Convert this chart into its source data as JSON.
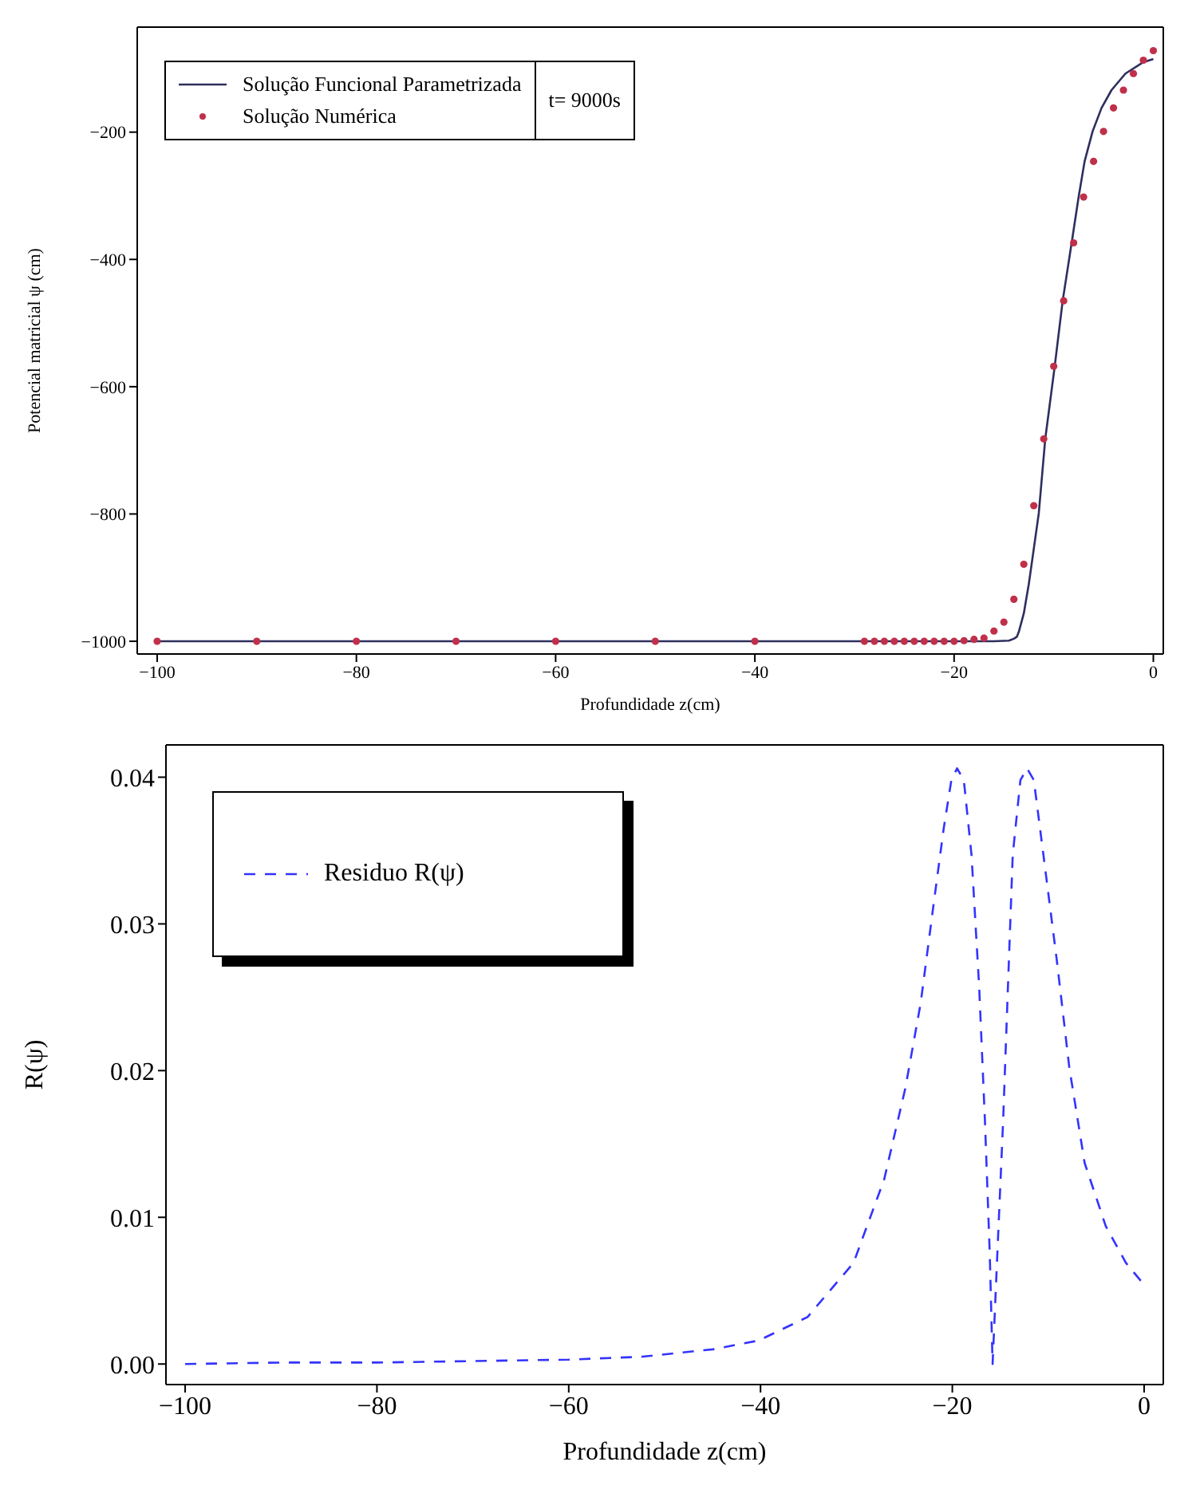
{
  "chart_data": [
    {
      "type": "line",
      "xlabel": "Profundidade z(cm)",
      "ylabel": "Potencial matricial ψ (cm)",
      "xlim": [
        -102,
        1
      ],
      "ylim": [
        -1020,
        -35
      ],
      "xticks": [
        -100,
        -80,
        -60,
        -40,
        -20,
        0
      ],
      "yticks": [
        -1000,
        -800,
        -600,
        -400,
        -200
      ],
      "grid": false,
      "legend": "top left",
      "annotations": [
        "t= 9000s"
      ],
      "series": [
        {
          "name": "Solução Funcional Parametrizada",
          "color": "#2e2e5e",
          "marker": "none",
          "line_style": "solid",
          "x": [
            -100,
            -60,
            -30,
            -20,
            -16,
            -14.5,
            -14,
            -13.7,
            -13.5,
            -13,
            -12.5,
            -12.2,
            -11.5,
            -10.85,
            -9.9,
            -9.1,
            -8.2,
            -7.5,
            -6.9,
            -6.1,
            -5.2,
            -4.2,
            -2.8,
            -1,
            0
          ],
          "values": [
            -1000,
            -1000,
            -1000,
            -1000,
            -1000,
            -999,
            -996,
            -993,
            -985,
            -956,
            -910,
            -877,
            -799,
            -682,
            -568,
            -465,
            -374,
            -302,
            -246,
            -199,
            -162,
            -134,
            -108,
            -90,
            -85
          ]
        },
        {
          "name": "Solução Numérica",
          "type": "scatter",
          "color": "#c0304a",
          "marker": "circle",
          "x": [
            -100,
            -90,
            -80,
            -70,
            -60,
            -50,
            -40,
            -29,
            -28,
            -27,
            -26,
            -25,
            -24,
            -23,
            -22,
            -21,
            -20,
            -19,
            -18,
            -17,
            -16,
            -15,
            -14,
            -13,
            -12,
            -11,
            -10,
            -9,
            -8,
            -7,
            -6,
            -5,
            -4,
            -3,
            -2,
            -1,
            0
          ],
          "values": [
            -1000,
            -1000,
            -1000,
            -1000,
            -1000,
            -1000,
            -1000,
            -1000,
            -1000,
            -1000,
            -1000,
            -1000,
            -1000,
            -1000,
            -1000,
            -1000,
            -1000,
            -999,
            -997,
            -995,
            -984,
            -970,
            -934,
            -879,
            -787,
            -682,
            -568,
            -465,
            -374,
            -302,
            -246,
            -199,
            -162,
            -134,
            -108,
            -87,
            -72
          ]
        }
      ]
    },
    {
      "type": "line",
      "xlabel": "Profundidade z(cm)",
      "ylabel": "R(ψ)",
      "xlim": [
        -102,
        2
      ],
      "ylim": [
        -0.0014,
        0.0422
      ],
      "xticks": [
        -100,
        -80,
        -60,
        -40,
        -20,
        0
      ],
      "yticks": [
        {
          "value": 0,
          "label": "0.00"
        },
        {
          "value": 0.01,
          "label": "0.01"
        },
        {
          "value": 0.02,
          "label": "0.02"
        },
        {
          "value": 0.03,
          "label": "0.03"
        },
        {
          "value": 0.04,
          "label": "0.04"
        }
      ],
      "grid": false,
      "legend": "top left",
      "marker": "none",
      "line_style": "dashed",
      "series": [
        {
          "name": "Residuo R(ψ)",
          "color": "#3333ff",
          "x": [
            -100,
            -90,
            -80,
            -70,
            -60,
            -52.3,
            -45,
            -40.2,
            -35.1,
            -30.3,
            -27.1,
            -24.9,
            -23.3,
            -22,
            -20.9,
            -20.1,
            -19.5,
            -18.8,
            -18,
            -17.2,
            -16.6,
            -16.1,
            -15.8,
            -15.3,
            -14.7,
            -14.2,
            -13.7,
            -12.9,
            -12.2,
            -11.5,
            -10.5,
            -9.1,
            -7.8,
            -6.2,
            -4,
            -1.9,
            0
          ],
          "values": [
            0,
            0.0001,
            0.0001,
            0.0002,
            0.0003,
            0.0005,
            0.001,
            0.0016,
            0.0032,
            0.0069,
            0.0126,
            0.0188,
            0.0246,
            0.0311,
            0.0365,
            0.0398,
            0.0406,
            0.0398,
            0.0347,
            0.0257,
            0.0166,
            0.0076,
            0,
            0.0076,
            0.0166,
            0.0257,
            0.0347,
            0.0398,
            0.0406,
            0.0398,
            0.0347,
            0.0275,
            0.0202,
            0.0137,
            0.0094,
            0.0069,
            0.0054
          ]
        }
      ]
    }
  ]
}
